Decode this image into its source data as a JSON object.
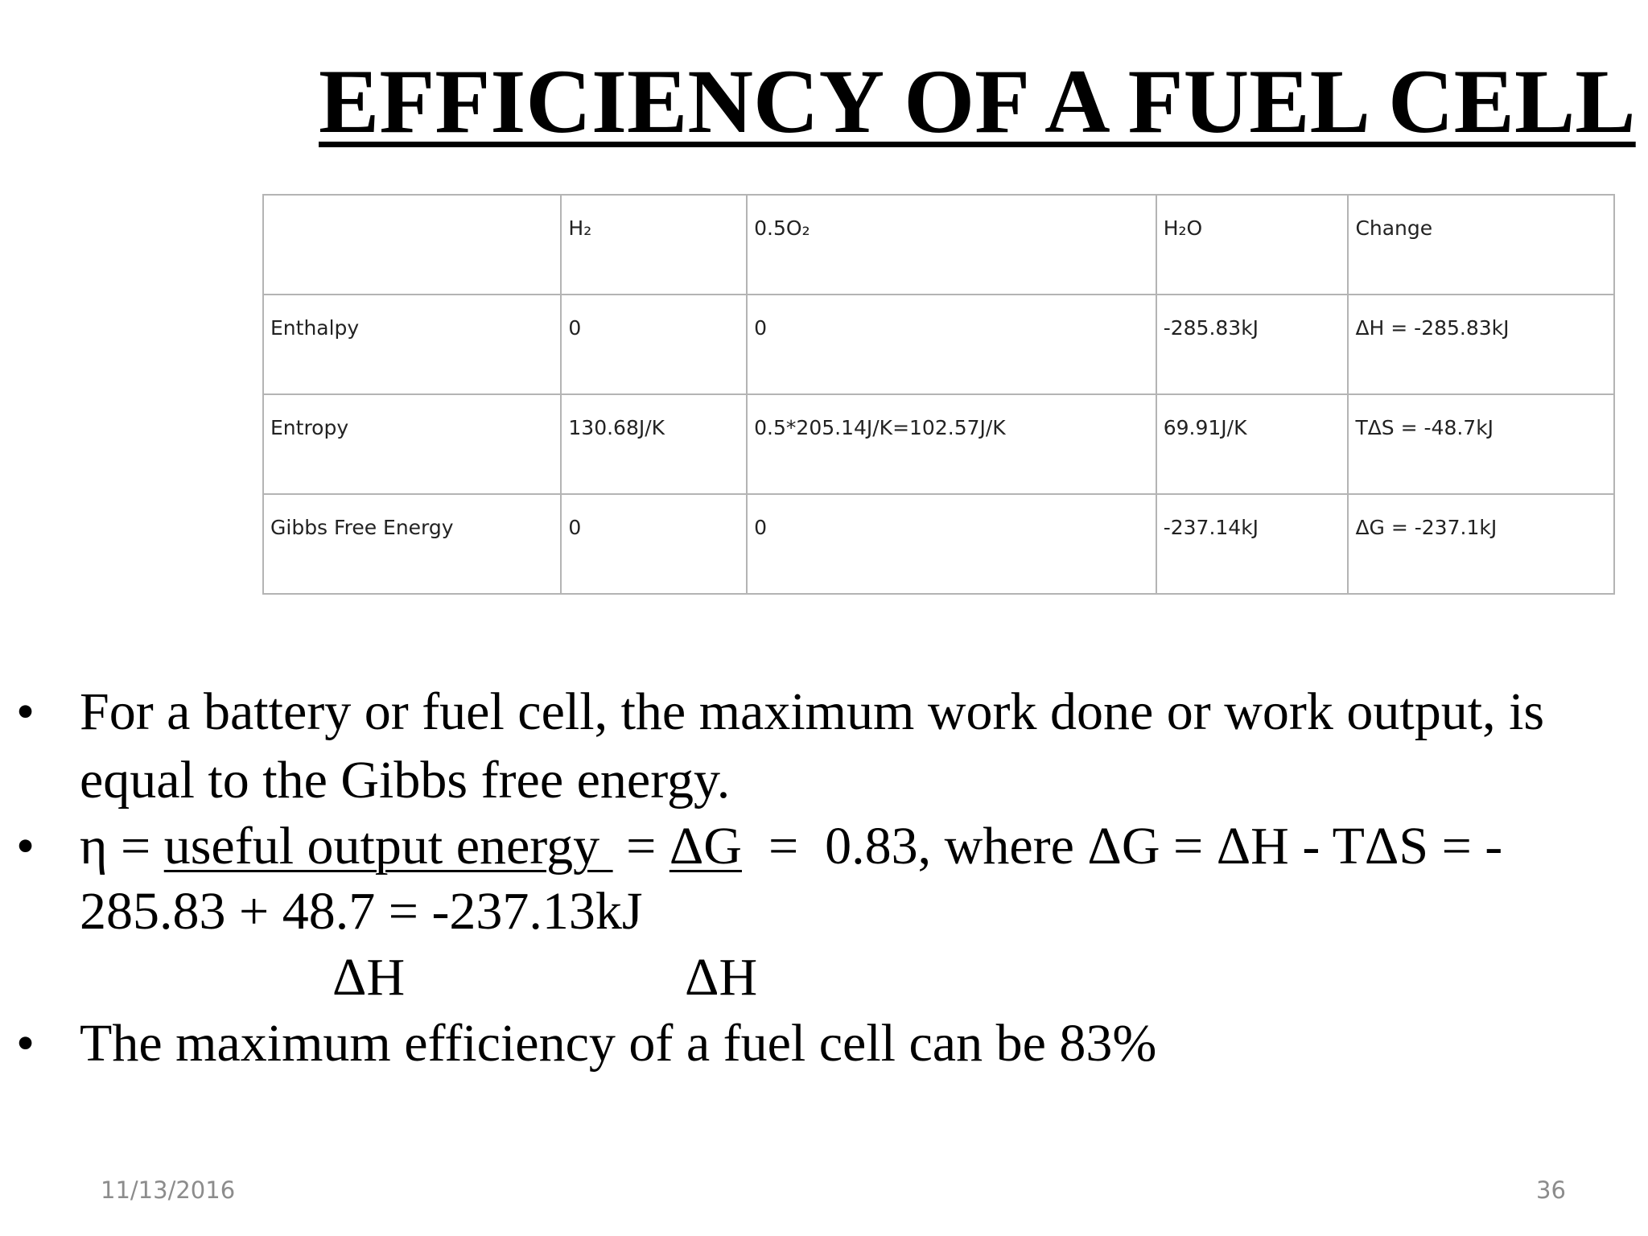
{
  "title": "EFFICIENCY OF A FUEL CELL",
  "table": {
    "header": [
      "H₂",
      "0.5O₂",
      "H₂O",
      "Change"
    ],
    "rows": [
      {
        "label": "Enthalpy",
        "cells": [
          "0",
          "0",
          "-285.83kJ",
          "ΔH = -285.83kJ"
        ]
      },
      {
        "label": "Entropy",
        "cells": [
          "130.68J/K",
          "0.5*205.14J/K=102.57J/K",
          "69.91J/K",
          "TΔS = -48.7kJ"
        ]
      },
      {
        "label": "Gibbs Free Energy",
        "cells": [
          "0",
          "0",
          "-237.14kJ",
          "ΔG = -237.1kJ"
        ]
      }
    ]
  },
  "bullets": [
    {
      "lines": [
        "For a battery or fuel cell, the maximum work done or work output, is",
        "equal to the Gibbs free energy."
      ]
    },
    {
      "first_line": [
        "η = ",
        "useful output energy ",
        " = ",
        "ΔG",
        "  =  0.83, where ΔG = ΔH - TΔS = -"
      ],
      "second_line": "285.83 + 48.7 = -237.13kJ",
      "denominators": [
        "ΔH",
        "ΔH"
      ]
    },
    {
      "lines": [
        "The maximum efficiency of a fuel cell can be 83%"
      ]
    }
  ],
  "footer": {
    "date": "11/13/2016",
    "page": "36"
  }
}
